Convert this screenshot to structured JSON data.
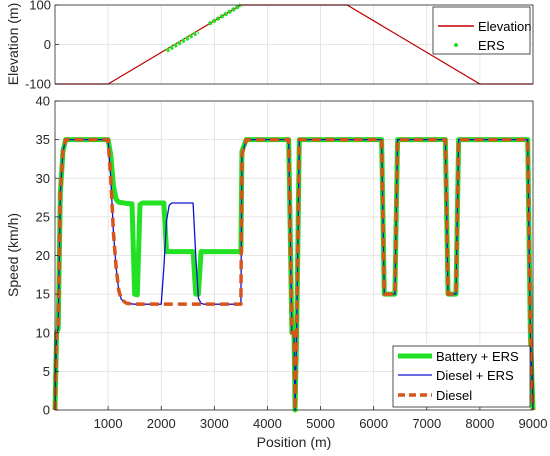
{
  "chart_data": [
    {
      "type": "line",
      "xlabel": "",
      "ylabel": "Elevation (m)",
      "xlim": [
        0,
        9000
      ],
      "ylim": [
        -100,
        100
      ],
      "yticks": [
        "-100",
        "0",
        "100"
      ],
      "grid": true,
      "legend": "top-right",
      "series": [
        {
          "name": "Elevation",
          "style": "line",
          "color": "#c00000",
          "x": [
            0,
            1000,
            3500,
            5500,
            8000,
            9000
          ],
          "y": [
            -100,
            -100,
            100,
            100,
            -100,
            -100
          ]
        },
        {
          "name": "ERS",
          "style": "markers",
          "color": "#22e022",
          "segments": [
            {
              "x": [
                2100,
                2700
              ],
              "y": [
                -16,
                32
              ]
            },
            {
              "x": [
                2900,
                3500
              ],
              "y": [
                52,
                100
              ]
            }
          ]
        }
      ]
    },
    {
      "type": "line",
      "xlabel": "Position (m)",
      "ylabel": "Speed (km/h)",
      "xlim": [
        0,
        9000
      ],
      "ylim": [
        0,
        40
      ],
      "xticks": [
        "1000",
        "2000",
        "3000",
        "4000",
        "5000",
        "6000",
        "7000",
        "8000",
        "9000"
      ],
      "yticks": [
        "0",
        "5",
        "10",
        "15",
        "20",
        "25",
        "30",
        "35",
        "40"
      ],
      "grid": true,
      "legend": "bottom-right",
      "series": [
        {
          "name": "Battery + ERS",
          "color": "#22e022",
          "x": [
            0,
            30,
            60,
            100,
            150,
            200,
            250,
            1000,
            1050,
            1100,
            1150,
            1200,
            1300,
            1400,
            1450,
            1500,
            1550,
            1600,
            1650,
            1700,
            2050,
            2100,
            2150,
            2500,
            2600,
            2650,
            2700,
            2750,
            3000,
            3500,
            3520,
            3600,
            3700,
            4400,
            4460,
            4500,
            4520,
            4550,
            4600,
            6150,
            6200,
            6400,
            6450,
            7350,
            7400,
            7550,
            7600,
            8900,
            8950,
            9000
          ],
          "y": [
            0,
            10,
            10.5,
            28,
            33.5,
            35,
            35,
            35,
            33,
            29,
            27.3,
            26.9,
            26.8,
            26.7,
            26.7,
            15,
            14.9,
            26.6,
            26.8,
            26.8,
            26.8,
            20.5,
            20.5,
            20.5,
            20.5,
            15,
            15,
            20.5,
            20.5,
            20.5,
            33.5,
            35,
            35,
            35,
            10,
            10,
            0,
            10,
            35,
            35,
            15,
            15,
            35,
            35,
            15,
            15,
            35,
            35,
            10,
            0
          ]
        },
        {
          "name": "Diesel + ERS",
          "color": "#1010d0",
          "x": [
            0,
            30,
            60,
            100,
            150,
            200,
            250,
            1000,
            1050,
            1100,
            1150,
            1200,
            1250,
            1350,
            1500,
            2000,
            2050,
            2100,
            2150,
            2200,
            2600,
            2650,
            2700,
            2750,
            2800,
            3000,
            3500,
            3520,
            3600,
            3700,
            4400,
            4460,
            4500,
            4520,
            4550,
            4600,
            6150,
            6200,
            6400,
            6450,
            7350,
            7400,
            7550,
            7600,
            8900,
            8950,
            9000
          ],
          "y": [
            0,
            10,
            10.5,
            28,
            33.5,
            35,
            35,
            35,
            30,
            23,
            18.5,
            15.5,
            14.3,
            13.8,
            13.7,
            13.7,
            18.5,
            24.5,
            26.5,
            26.8,
            26.8,
            20,
            14.5,
            13.8,
            13.7,
            13.7,
            13.7,
            33,
            35,
            35,
            35,
            10,
            10,
            0,
            10,
            35,
            35,
            15,
            15,
            35,
            35,
            15,
            15,
            35,
            35,
            10,
            0
          ]
        },
        {
          "name": "Diesel",
          "color": "#d9541a",
          "x": [
            0,
            30,
            60,
            100,
            150,
            200,
            250,
            1000,
            1050,
            1100,
            1150,
            1200,
            1250,
            1350,
            1500,
            3500,
            3520,
            3600,
            3700,
            4400,
            4460,
            4500,
            4520,
            4550,
            4600,
            6150,
            6200,
            6400,
            6450,
            7350,
            7400,
            7550,
            7600,
            8900,
            8950,
            9000
          ],
          "y": [
            0,
            10,
            10.5,
            28,
            33.5,
            35,
            35,
            35,
            30,
            23,
            18.5,
            15.5,
            14.3,
            13.8,
            13.7,
            13.7,
            33,
            35,
            35,
            35,
            10,
            10,
            0,
            10,
            35,
            35,
            15,
            15,
            35,
            35,
            15,
            15,
            35,
            35,
            10,
            0
          ]
        }
      ]
    }
  ]
}
